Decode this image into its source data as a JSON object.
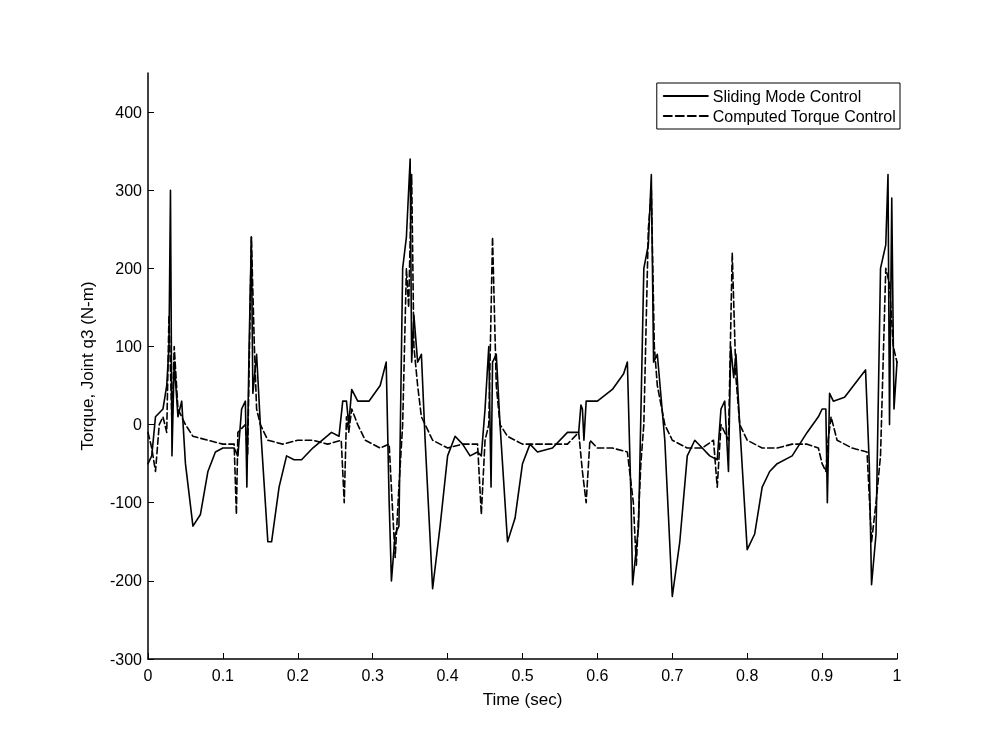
{
  "chart_data": {
    "type": "line",
    "xlabel": "Time (sec)",
    "ylabel": "Torque, Joint q3 (N-m)",
    "xlim": [
      0,
      1
    ],
    "xticks": [
      0,
      0.1,
      0.2,
      0.3,
      0.4,
      0.5,
      0.6,
      0.7,
      0.8,
      0.9,
      1
    ],
    "ylim": [
      -300,
      450
    ],
    "yticks": [
      -300,
      -200,
      -100,
      0,
      100,
      200,
      300,
      400
    ],
    "grid": false,
    "legend": "top right",
    "marker": "none",
    "series": [
      {
        "name": "Sliding Mode Control",
        "color": "#000000",
        "line_style": "solid",
        "x": [
          0,
          0.005,
          0.01,
          0.02,
          0.025,
          0.028,
          0.03,
          0.032,
          0.035,
          0.04,
          0.045,
          0.05,
          0.06,
          0.07,
          0.08,
          0.09,
          0.1,
          0.115,
          0.12,
          0.125,
          0.13,
          0.132,
          0.135,
          0.138,
          0.14,
          0.145,
          0.15,
          0.16,
          0.165,
          0.175,
          0.185,
          0.195,
          0.205,
          0.22,
          0.245,
          0.255,
          0.26,
          0.265,
          0.268,
          0.272,
          0.28,
          0.295,
          0.31,
          0.318,
          0.322,
          0.325,
          0.33,
          0.335,
          0.34,
          0.345,
          0.35,
          0.352,
          0.355,
          0.36,
          0.365,
          0.37,
          0.38,
          0.39,
          0.4,
          0.41,
          0.42,
          0.43,
          0.44,
          0.445,
          0.45,
          0.455,
          0.458,
          0.46,
          0.465,
          0.47,
          0.48,
          0.49,
          0.5,
          0.51,
          0.52,
          0.54,
          0.56,
          0.575,
          0.578,
          0.58,
          0.582,
          0.585,
          0.59,
          0.6,
          0.62,
          0.635,
          0.64,
          0.645,
          0.647,
          0.655,
          0.662,
          0.668,
          0.672,
          0.675,
          0.68,
          0.69,
          0.7,
          0.71,
          0.72,
          0.73,
          0.74,
          0.75,
          0.76,
          0.765,
          0.77,
          0.775,
          0.778,
          0.782,
          0.785,
          0.79,
          0.8,
          0.81,
          0.82,
          0.83,
          0.84,
          0.86,
          0.88,
          0.895,
          0.9,
          0.905,
          0.907,
          0.91,
          0.915,
          0.93,
          0.95,
          0.958,
          0.963,
          0.966,
          0.972,
          0.978,
          0.985,
          0.988,
          0.99,
          0.993,
          0.996,
          1
        ],
        "values": [
          -50,
          -40,
          10,
          20,
          50,
          100,
          300,
          -40,
          80,
          10,
          30,
          -50,
          -130,
          -115,
          -60,
          -35,
          -30,
          -30,
          -40,
          20,
          30,
          -80,
          100,
          240,
          40,
          90,
          0,
          -150,
          -150,
          -80,
          -40,
          -45,
          -45,
          -30,
          -10,
          -15,
          30,
          30,
          0,
          45,
          30,
          30,
          50,
          80,
          -100,
          -200,
          -140,
          -130,
          200,
          240,
          340,
          80,
          140,
          80,
          90,
          -20,
          -210,
          -130,
          -40,
          -15,
          -25,
          -40,
          -35,
          -40,
          20,
          100,
          -80,
          80,
          90,
          0,
          -150,
          -120,
          -50,
          -25,
          -35,
          -30,
          -10,
          -10,
          25,
          20,
          -20,
          30,
          30,
          30,
          45,
          65,
          80,
          -100,
          -205,
          -130,
          200,
          230,
          320,
          80,
          90,
          -20,
          -220,
          -150,
          -40,
          -20,
          -30,
          -40,
          -45,
          20,
          30,
          -60,
          100,
          60,
          90,
          0,
          -160,
          -140,
          -80,
          -60,
          -50,
          -40,
          -10,
          10,
          20,
          20,
          -100,
          40,
          30,
          35,
          60,
          70,
          -50,
          -205,
          -140,
          200,
          230,
          320,
          0,
          290,
          20,
          80
        ]
      },
      {
        "name": "Computed Torque Control",
        "color": "#000000",
        "line_style": "dashed",
        "x": [
          0,
          0.005,
          0.01,
          0.015,
          0.02,
          0.025,
          0.028,
          0.032,
          0.035,
          0.04,
          0.05,
          0.06,
          0.08,
          0.1,
          0.115,
          0.118,
          0.12,
          0.13,
          0.133,
          0.138,
          0.142,
          0.145,
          0.15,
          0.16,
          0.18,
          0.2,
          0.22,
          0.24,
          0.258,
          0.262,
          0.265,
          0.268,
          0.272,
          0.28,
          0.29,
          0.31,
          0.322,
          0.326,
          0.33,
          0.335,
          0.34,
          0.345,
          0.348,
          0.352,
          0.355,
          0.36,
          0.365,
          0.37,
          0.38,
          0.4,
          0.42,
          0.44,
          0.445,
          0.45,
          0.455,
          0.46,
          0.465,
          0.47,
          0.48,
          0.5,
          0.52,
          0.54,
          0.56,
          0.575,
          0.58,
          0.585,
          0.59,
          0.6,
          0.62,
          0.64,
          0.648,
          0.652,
          0.658,
          0.662,
          0.668,
          0.672,
          0.676,
          0.68,
          0.69,
          0.7,
          0.72,
          0.74,
          0.755,
          0.76,
          0.765,
          0.775,
          0.78,
          0.785,
          0.79,
          0.8,
          0.82,
          0.84,
          0.86,
          0.88,
          0.895,
          0.9,
          0.905,
          0.908,
          0.912,
          0.92,
          0.94,
          0.96,
          0.966,
          0.972,
          0.978,
          0.985,
          0.99,
          0.995,
          1
        ],
        "values": [
          -10,
          -30,
          -60,
          0,
          10,
          -10,
          140,
          0,
          100,
          20,
          0,
          -15,
          -20,
          -25,
          -25,
          -115,
          -10,
          0,
          -40,
          240,
          100,
          20,
          0,
          -20,
          -25,
          -20,
          -20,
          -25,
          -20,
          -100,
          10,
          -10,
          20,
          0,
          -20,
          -30,
          -25,
          -100,
          -170,
          -80,
          0,
          200,
          150,
          320,
          100,
          50,
          10,
          0,
          -20,
          -30,
          -25,
          -25,
          -115,
          -20,
          0,
          240,
          50,
          0,
          -15,
          -25,
          -25,
          -25,
          -25,
          -10,
          -60,
          -100,
          -20,
          -30,
          -30,
          -35,
          -100,
          -180,
          -50,
          0,
          250,
          300,
          100,
          50,
          0,
          -20,
          -30,
          -30,
          -20,
          -80,
          0,
          -20,
          220,
          60,
          0,
          -20,
          -30,
          -30,
          -25,
          -25,
          -30,
          -50,
          -60,
          -20,
          10,
          -20,
          -30,
          -35,
          -150,
          -100,
          -40,
          200,
          180,
          100,
          80
        ]
      }
    ]
  }
}
